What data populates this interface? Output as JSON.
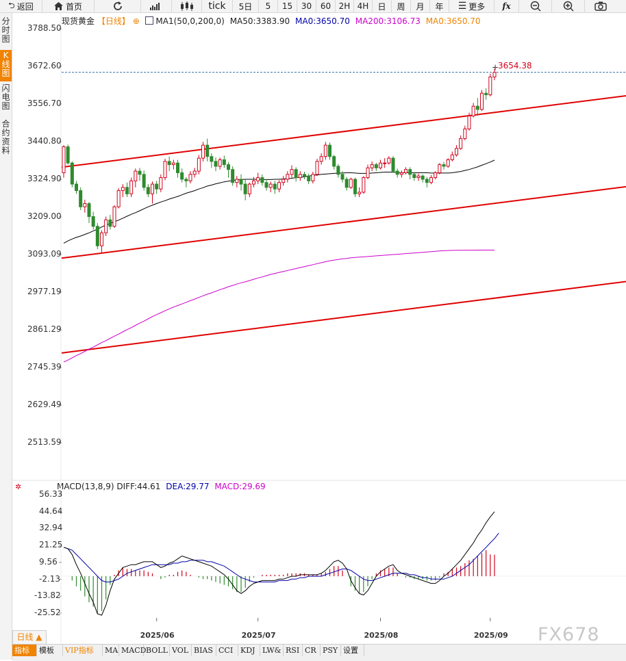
{
  "toolbar": {
    "back_label": "返回",
    "home_label": "首页",
    "tick_label": "tick",
    "periods": [
      "5日",
      "5",
      "15",
      "30",
      "60",
      "2H",
      "4H",
      "日",
      "周",
      "月",
      "年"
    ],
    "more_label": "更多",
    "fx_label": "fx"
  },
  "side_tabs": [
    "分时图",
    "K线图",
    "闪电图",
    "合约资料"
  ],
  "legend": {
    "symbol": "现货黄金",
    "period": "【日线】",
    "ma_params": "MA1(50,0,200,0)",
    "ma50": "MA50:3383.90",
    "ma0": "MA0:3650.70",
    "ma200": "MA200:3106.73",
    "ma0b": "MA0:3650.70"
  },
  "last_price_label": "3654.38",
  "macd_legend": {
    "params": "MACD(13,8,9)",
    "diff": "DIFF:44.61",
    "dea": "DEA:29.77",
    "macd": "MACD:29.69"
  },
  "colors": {
    "up": "#d0021b",
    "down": "#2e8b2e",
    "ma50": "#000000",
    "ma200": "#cc00cc",
    "channel": "#e00000",
    "accent": "#f08300",
    "dea": "#0000aa"
  },
  "chart_data": [
    {
      "type": "candlestick",
      "title": "现货黄金 日线",
      "y_ticks": [
        "3788.50",
        "3672.60",
        "3556.70",
        "3440.80",
        "3324.90",
        "3209.00",
        "3093.09",
        "2977.19",
        "2861.29",
        "2745.39",
        "2629.49",
        "2513.59"
      ],
      "ylim": [
        2448,
        3818
      ],
      "x_ticks": [
        "2025/06",
        "2025/07",
        "2025/08",
        "2025/09"
      ],
      "last_price": 3654.38,
      "candles": [
        [
          3345,
          3425,
          3330,
          3430
        ],
        [
          3425,
          3375,
          3370,
          3432
        ],
        [
          3375,
          3310,
          3300,
          3380
        ],
        [
          3310,
          3290,
          3280,
          3320
        ],
        [
          3290,
          3240,
          3230,
          3300
        ],
        [
          3240,
          3250,
          3222,
          3262
        ],
        [
          3250,
          3210,
          3190,
          3255
        ],
        [
          3210,
          3180,
          3170,
          3225
        ],
        [
          3180,
          3120,
          3110,
          3190
        ],
        [
          3120,
          3160,
          3100,
          3168
        ],
        [
          3160,
          3200,
          3150,
          3210
        ],
        [
          3200,
          3180,
          3170,
          3215
        ],
        [
          3180,
          3240,
          3175,
          3245
        ],
        [
          3240,
          3290,
          3235,
          3298
        ],
        [
          3290,
          3300,
          3270,
          3310
        ],
        [
          3300,
          3280,
          3270,
          3315
        ],
        [
          3280,
          3320,
          3270,
          3330
        ],
        [
          3320,
          3350,
          3300,
          3358
        ],
        [
          3350,
          3340,
          3320,
          3360
        ],
        [
          3340,
          3300,
          3290,
          3352
        ],
        [
          3300,
          3280,
          3270,
          3310
        ],
        [
          3280,
          3310,
          3250,
          3318
        ],
        [
          3310,
          3295,
          3280,
          3320
        ],
        [
          3295,
          3330,
          3285,
          3340
        ],
        [
          3330,
          3380,
          3322,
          3388
        ],
        [
          3380,
          3370,
          3350,
          3395
        ],
        [
          3370,
          3375,
          3355,
          3385
        ],
        [
          3375,
          3345,
          3330,
          3385
        ],
        [
          3345,
          3325,
          3315,
          3358
        ],
        [
          3325,
          3320,
          3300,
          3332
        ],
        [
          3320,
          3340,
          3312,
          3350
        ],
        [
          3340,
          3350,
          3330,
          3360
        ],
        [
          3350,
          3390,
          3340,
          3400
        ],
        [
          3390,
          3430,
          3380,
          3440
        ],
        [
          3430,
          3395,
          3380,
          3450
        ],
        [
          3395,
          3380,
          3360,
          3405
        ],
        [
          3380,
          3365,
          3350,
          3392
        ],
        [
          3365,
          3385,
          3355,
          3392
        ],
        [
          3385,
          3370,
          3360,
          3398
        ],
        [
          3370,
          3355,
          3330,
          3378
        ],
        [
          3355,
          3315,
          3305,
          3365
        ],
        [
          3315,
          3325,
          3300,
          3335
        ],
        [
          3325,
          3310,
          3290,
          3340
        ],
        [
          3310,
          3280,
          3260,
          3325
        ],
        [
          3280,
          3310,
          3270,
          3315
        ],
        [
          3310,
          3320,
          3300,
          3332
        ],
        [
          3320,
          3330,
          3310,
          3345
        ],
        [
          3330,
          3315,
          3305,
          3340
        ],
        [
          3315,
          3300,
          3290,
          3325
        ],
        [
          3300,
          3310,
          3285,
          3318
        ],
        [
          3310,
          3295,
          3280,
          3320
        ],
        [
          3295,
          3315,
          3285,
          3322
        ],
        [
          3315,
          3325,
          3305,
          3335
        ],
        [
          3325,
          3340,
          3315,
          3350
        ],
        [
          3340,
          3355,
          3330,
          3368
        ],
        [
          3355,
          3330,
          3318,
          3362
        ],
        [
          3330,
          3340,
          3320,
          3350
        ],
        [
          3340,
          3335,
          3325,
          3348
        ],
        [
          3335,
          3320,
          3310,
          3342
        ],
        [
          3320,
          3340,
          3312,
          3348
        ],
        [
          3340,
          3380,
          3335,
          3388
        ],
        [
          3380,
          3395,
          3370,
          3405
        ],
        [
          3395,
          3430,
          3385,
          3440
        ],
        [
          3430,
          3395,
          3385,
          3438
        ],
        [
          3395,
          3365,
          3355,
          3400
        ],
        [
          3365,
          3340,
          3330,
          3372
        ],
        [
          3340,
          3325,
          3315,
          3350
        ],
        [
          3325,
          3300,
          3290,
          3332
        ],
        [
          3300,
          3325,
          3295,
          3330
        ],
        [
          3325,
          3280,
          3270,
          3330
        ],
        [
          3280,
          3285,
          3270,
          3300
        ],
        [
          3285,
          3330,
          3280,
          3335
        ],
        [
          3330,
          3360,
          3325,
          3370
        ],
        [
          3360,
          3370,
          3350,
          3380
        ],
        [
          3370,
          3360,
          3350,
          3376
        ],
        [
          3360,
          3375,
          3355,
          3385
        ],
        [
          3375,
          3375,
          3360,
          3390
        ],
        [
          3375,
          3390,
          3370,
          3396
        ],
        [
          3390,
          3350,
          3345,
          3396
        ],
        [
          3350,
          3340,
          3330,
          3358
        ],
        [
          3340,
          3345,
          3330,
          3352
        ],
        [
          3345,
          3355,
          3340,
          3362
        ],
        [
          3355,
          3340,
          3325,
          3362
        ],
        [
          3340,
          3330,
          3320,
          3345
        ],
        [
          3330,
          3335,
          3320,
          3342
        ],
        [
          3335,
          3325,
          3315,
          3340
        ],
        [
          3325,
          3315,
          3300,
          3332
        ],
        [
          3315,
          3330,
          3310,
          3338
        ],
        [
          3330,
          3345,
          3325,
          3350
        ],
        [
          3345,
          3370,
          3340,
          3375
        ],
        [
          3370,
          3365,
          3355,
          3378
        ],
        [
          3365,
          3385,
          3360,
          3390
        ],
        [
          3385,
          3400,
          3380,
          3410
        ],
        [
          3400,
          3420,
          3395,
          3430
        ],
        [
          3420,
          3450,
          3415,
          3460
        ],
        [
          3450,
          3480,
          3445,
          3490
        ],
        [
          3480,
          3520,
          3475,
          3530
        ],
        [
          3520,
          3550,
          3515,
          3560
        ],
        [
          3550,
          3540,
          3520,
          3575
        ],
        [
          3540,
          3590,
          3535,
          3600
        ],
        [
          3590,
          3585,
          3570,
          3605
        ],
        [
          3585,
          3640,
          3580,
          3650
        ],
        [
          3640,
          3654.38,
          3630,
          3665
        ]
      ],
      "ma50": [
        3128,
        3135,
        3141,
        3146,
        3150,
        3155,
        3160,
        3166,
        3171,
        3178,
        3184,
        3189,
        3194,
        3199,
        3205,
        3211,
        3217,
        3222,
        3228,
        3234,
        3240,
        3245,
        3250,
        3255,
        3259,
        3264,
        3268,
        3272,
        3277,
        3282,
        3286,
        3290,
        3295,
        3299,
        3304,
        3307,
        3311,
        3314,
        3317,
        3319,
        3321,
        3323,
        3324,
        3325,
        3325,
        3325,
        3325,
        3324,
        3324,
        3324,
        3325,
        3325,
        3326,
        3327,
        3328,
        3330,
        3331,
        3333,
        3335,
        3337,
        3338,
        3340,
        3341,
        3342,
        3343,
        3344,
        3344,
        3345,
        3345,
        3344,
        3343,
        3343,
        3343,
        3344,
        3345,
        3346,
        3347,
        3347,
        3347,
        3346,
        3345,
        3345,
        3345,
        3345,
        3345,
        3345,
        3345,
        3344,
        3344,
        3344,
        3344,
        3344,
        3345,
        3347,
        3349,
        3352,
        3355,
        3359,
        3363,
        3368,
        3373,
        3378,
        3383.9
      ],
      "ma200": [
        2762,
        2768,
        2775,
        2782,
        2788,
        2795,
        2802,
        2808,
        2815,
        2822,
        2828,
        2835,
        2842,
        2848,
        2855,
        2862,
        2868,
        2875,
        2882,
        2888,
        2895,
        2902,
        2908,
        2914,
        2920,
        2926,
        2931,
        2936,
        2941,
        2946,
        2951,
        2956,
        2961,
        2966,
        2971,
        2975,
        2980,
        2985,
        2989,
        2994,
        2998,
        3002,
        3006,
        3009,
        3013,
        3017,
        3021,
        3024,
        3028,
        3032,
        3035,
        3038,
        3041,
        3044,
        3047,
        3050,
        3053,
        3056,
        3059,
        3062,
        3065,
        3068,
        3071,
        3074,
        3076,
        3078,
        3080,
        3081,
        3083,
        3084,
        3085,
        3086,
        3087,
        3088,
        3089,
        3090,
        3091,
        3092,
        3093,
        3094,
        3095,
        3096,
        3097,
        3098,
        3099,
        3100,
        3101,
        3102,
        3103,
        3104,
        3105,
        3105.5,
        3106,
        3106.2,
        3106.4,
        3106.5,
        3106.6,
        3106.65,
        3106.7,
        3106.72,
        3106.73,
        3106.73,
        3106.73
      ],
      "channel_lines": [
        {
          "name": "upper",
          "start": 3362,
          "end": 3582
        },
        {
          "name": "middle",
          "start": 3082,
          "end": 3302
        },
        {
          "name": "lower",
          "start": 2790,
          "end": 3010
        }
      ]
    },
    {
      "type": "macd",
      "y_ticks": [
        "56.33",
        "44.64",
        "32.94",
        "21.25",
        "9.56",
        "-2.13",
        "-13.82",
        "-25.52"
      ],
      "ylim": [
        -36,
        64
      ],
      "diff": [
        20,
        19,
        15,
        8,
        2,
        -5,
        -12,
        -18,
        -26,
        -27,
        -20,
        -10,
        -2,
        2,
        6,
        7,
        8,
        8,
        9,
        10,
        10,
        10,
        8,
        6,
        7,
        9,
        10,
        12,
        14,
        13,
        12,
        11,
        10,
        9,
        8,
        7,
        5,
        3,
        1,
        -2,
        -6,
        -10,
        -12,
        -10,
        -7,
        -5,
        -4,
        -3,
        -3,
        -3,
        -3,
        -2,
        -2,
        -1,
        0,
        0,
        1,
        1,
        1,
        1,
        1,
        2,
        4,
        7,
        10,
        11,
        9,
        5,
        -3,
        -8,
        -12,
        -13,
        -10,
        -5,
        0,
        3,
        5,
        7,
        8,
        4,
        2,
        1,
        0,
        -1,
        -2,
        -3,
        -4,
        -5,
        -5,
        -3,
        0,
        2,
        5,
        8,
        11,
        15,
        19,
        23,
        28,
        32,
        37,
        41,
        44.61
      ],
      "dea": [
        20,
        19,
        18,
        15,
        12,
        9,
        6,
        3,
        0,
        -3,
        -4,
        -4,
        -3,
        -2,
        0,
        2,
        3,
        4,
        5,
        6,
        7,
        8,
        8,
        8,
        8,
        8,
        9,
        9,
        10,
        10,
        11,
        11,
        11,
        11,
        10,
        10,
        9,
        8,
        7,
        5,
        3,
        1,
        -1,
        -2,
        -3,
        -4,
        -4,
        -4,
        -4,
        -4,
        -4,
        -3,
        -3,
        -3,
        -2,
        -2,
        -1,
        -1,
        0,
        0,
        0,
        0,
        1,
        2,
        3,
        4,
        5,
        5,
        4,
        2,
        0,
        -2,
        -3,
        -3,
        -2,
        -1,
        0,
        1,
        2,
        2,
        2,
        2,
        1,
        1,
        0,
        -1,
        -1,
        -2,
        -2,
        -2,
        -2,
        -1,
        0,
        2,
        4,
        6,
        8,
        11,
        14,
        17,
        20,
        23,
        26,
        29.77
      ],
      "histogram": [
        0,
        0,
        -3,
        -7,
        -10,
        -14,
        -18,
        -21,
        -26,
        -24,
        -16,
        -6,
        1,
        4,
        6,
        5,
        5,
        4,
        4,
        4,
        3,
        2,
        0,
        -2,
        -1,
        1,
        1,
        3,
        4,
        3,
        1,
        0,
        -1,
        -2,
        -2,
        -3,
        -4,
        -5,
        -6,
        -7,
        -9,
        -11,
        -11,
        -8,
        -4,
        -1,
        0,
        1,
        1,
        1,
        1,
        1,
        1,
        2,
        2,
        2,
        2,
        2,
        1,
        1,
        1,
        2,
        3,
        5,
        7,
        7,
        4,
        0,
        -7,
        -10,
        -12,
        -11,
        -7,
        -2,
        2,
        4,
        5,
        6,
        6,
        2,
        0,
        -1,
        -1,
        -2,
        -2,
        -2,
        -3,
        -3,
        -3,
        -1,
        2,
        3,
        5,
        6,
        7,
        9,
        11,
        12,
        14,
        16,
        18,
        15,
        14.84
      ]
    }
  ],
  "bottom_bar": {
    "period_selector": "日线 ▲",
    "tabs": [
      "指标",
      "模板",
      "VIP指标",
      "MA",
      "MACD",
      "BOLL",
      "VOL",
      "BIAS",
      "CCI",
      "KDJ",
      "LW&",
      "RSI",
      "CR",
      "PSY",
      "设置"
    ]
  },
  "watermark": "FX678"
}
